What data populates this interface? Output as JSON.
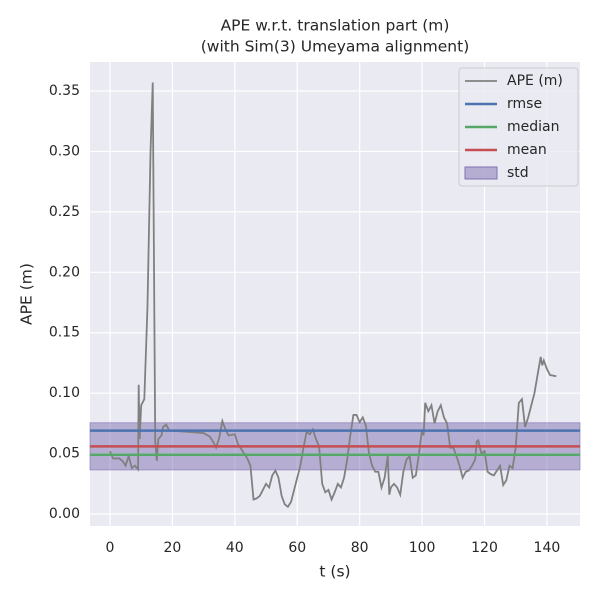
{
  "chart_data": {
    "type": "line",
    "title": "APE w.r.t. translation part (m)",
    "subtitle": "(with Sim(3) Umeyama alignment)",
    "x_label": "t (s)",
    "y_label": "APE (m)",
    "xlim": [
      -6.4,
      150.6
    ],
    "ylim": [
      -0.0099,
      0.374
    ],
    "xticks": [
      0,
      20,
      40,
      60,
      80,
      100,
      120,
      140
    ],
    "yticks": [
      {
        "value": 0,
        "label": "0.00"
      },
      0.05,
      {
        "value": 0.1,
        "label": "0.10"
      },
      0.15,
      {
        "value": 0.2,
        "label": "0.20"
      },
      0.25,
      {
        "value": 0.3,
        "label": "0.30"
      },
      0.35
    ],
    "grid": true,
    "legend": "upper right",
    "series": [
      {
        "name": "APE (m)",
        "color": "#808080",
        "x": [
          0,
          1,
          3,
          4,
          5,
          6,
          7,
          8,
          9,
          9.2,
          9.5,
          10,
          11,
          12,
          13,
          13.7,
          14.5,
          15,
          15.5,
          16.5,
          17,
          18,
          19,
          25,
          30,
          32,
          33,
          34,
          35,
          36,
          37,
          38,
          40,
          41,
          42,
          44,
          45,
          46,
          47,
          48,
          50,
          51,
          52,
          53,
          54,
          55,
          56,
          57,
          58,
          59,
          60,
          61,
          62,
          63,
          64,
          65,
          66,
          67,
          68,
          69,
          70,
          71,
          72,
          73,
          74,
          75,
          76,
          77,
          78,
          79,
          80,
          81,
          82,
          83,
          84,
          85,
          86,
          87,
          88,
          89,
          89.5,
          90,
          91,
          92,
          93,
          94,
          95,
          96,
          97,
          98,
          99,
          100,
          100.5,
          101,
          102,
          103,
          104,
          105,
          106,
          107,
          108,
          109,
          110,
          111,
          112,
          113,
          114,
          115,
          116,
          117,
          117.5,
          118,
          119,
          120,
          121,
          122,
          123,
          124,
          125,
          126,
          127,
          128,
          129,
          130,
          131,
          132,
          133,
          134,
          135,
          136,
          137,
          138,
          138.5,
          139,
          140,
          141,
          143
        ],
        "values": [
          0.052,
          0.046,
          0.046,
          0.044,
          0.04,
          0.048,
          0.038,
          0.04,
          0.037,
          0.107,
          0.062,
          0.09,
          0.095,
          0.17,
          0.3,
          0.357,
          0.06,
          0.044,
          0.062,
          0.065,
          0.072,
          0.074,
          0.069,
          0.068,
          0.067,
          0.064,
          0.06,
          0.055,
          0.063,
          0.077,
          0.07,
          0.065,
          0.066,
          0.058,
          0.054,
          0.046,
          0.04,
          0.012,
          0.013,
          0.015,
          0.025,
          0.022,
          0.032,
          0.036,
          0.03,
          0.015,
          0.008,
          0.006,
          0.01,
          0.02,
          0.03,
          0.04,
          0.055,
          0.068,
          0.066,
          0.07,
          0.062,
          0.056,
          0.025,
          0.018,
          0.02,
          0.012,
          0.018,
          0.025,
          0.022,
          0.03,
          0.045,
          0.065,
          0.082,
          0.082,
          0.076,
          0.08,
          0.073,
          0.05,
          0.04,
          0.035,
          0.035,
          0.022,
          0.03,
          0.048,
          0.016,
          0.022,
          0.025,
          0.022,
          0.016,
          0.035,
          0.045,
          0.048,
          0.03,
          0.032,
          0.05,
          0.07,
          0.065,
          0.092,
          0.085,
          0.09,
          0.075,
          0.085,
          0.09,
          0.08,
          0.075,
          0.055,
          0.055,
          0.048,
          0.04,
          0.03,
          0.035,
          0.036,
          0.04,
          0.045,
          0.06,
          0.061,
          0.05,
          0.052,
          0.035,
          0.033,
          0.032,
          0.036,
          0.04,
          0.024,
          0.028,
          0.04,
          0.038,
          0.055,
          0.092,
          0.095,
          0.072,
          0.08,
          0.09,
          0.1,
          0.115,
          0.13,
          0.123,
          0.127,
          0.12,
          0.115,
          0.114
        ]
      },
      {
        "name": "rmse",
        "color": "#4c72b0",
        "value": 0.069
      },
      {
        "name": "median",
        "color": "#55a868",
        "value": 0.049
      },
      {
        "name": "mean",
        "color": "#c44e52",
        "value": 0.056
      },
      {
        "name": "std",
        "color": "#8172b2",
        "value": 0.0195
      }
    ]
  }
}
